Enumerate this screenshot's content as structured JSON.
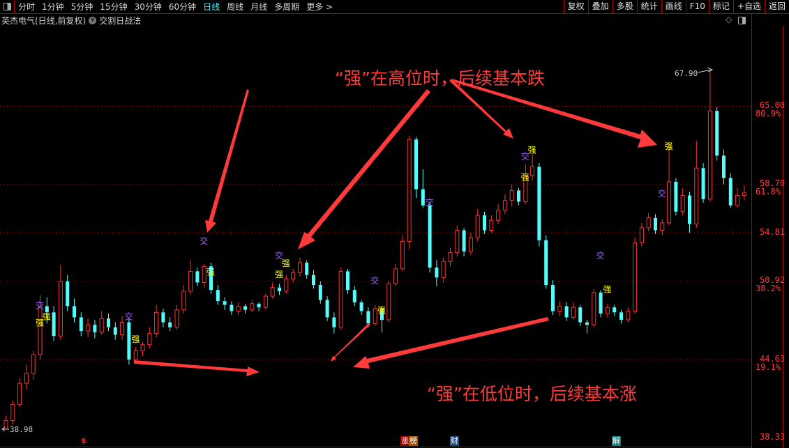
{
  "toolbar": {
    "periods": [
      "分时",
      "1分钟",
      "5分钟",
      "15分钟",
      "30分钟",
      "60分钟",
      "日线",
      "周线",
      "月线",
      "多周期",
      "更多 >"
    ],
    "active_period": "日线",
    "buttons": [
      "复权",
      "叠加",
      "多股",
      "统计",
      "画线",
      "F10",
      "标记",
      "+自选",
      "返回"
    ]
  },
  "title": {
    "stock": "英杰电气(日线,前复权)",
    "indicator": "交割日战法"
  },
  "annotations": {
    "high": "“强”在高位时，后续基本跌",
    "low": "“强”在低位时，后续基本涨"
  },
  "axis": {
    "price_labels": [
      {
        "price": "65.00",
        "pct": "80.9%"
      },
      {
        "price": "58.70",
        "pct": "61.8%"
      },
      {
        "price": "54.81",
        "pct": ""
      },
      {
        "price": "50.92",
        "pct": "38.2%"
      },
      {
        "price": "44.63",
        "pct": "19.1%"
      },
      {
        "price": "38.33",
        "pct": ""
      }
    ],
    "max_label": "67.90",
    "min_label": "38.98"
  },
  "bottom_markers": [
    {
      "label": "$",
      "color": "#ff2020"
    },
    {
      "label": "涨",
      "color": "#a00000"
    },
    {
      "label": "榜",
      "color": "#a05000"
    },
    {
      "label": "财",
      "color": "#1a4a8a"
    },
    {
      "label": "解",
      "color": "#108080"
    }
  ],
  "colors": {
    "up": "#ff3232",
    "down": "#54fcfc",
    "grid": "#b00000",
    "signal_jiao": "#a060ff",
    "signal_qiang": "#ffff00",
    "annotation": "#ff3a3a"
  },
  "chart_data": {
    "type": "candlestick",
    "ylim": [
      38.33,
      67.9
    ],
    "gridlines": [
      65.0,
      58.7,
      54.81,
      50.92,
      44.63
    ],
    "candles": [
      [
        39.0,
        40.1,
        38.98,
        39.7
      ],
      [
        39.7,
        41.3,
        39.4,
        41.0
      ],
      [
        41.0,
        43.1,
        40.8,
        42.7
      ],
      [
        42.7,
        44.2,
        42.2,
        43.5
      ],
      [
        43.5,
        45.3,
        43.0,
        45.0
      ],
      [
        45.0,
        49.8,
        44.6,
        48.9
      ],
      [
        48.9,
        49.6,
        47.5,
        48.4
      ],
      [
        48.4,
        48.9,
        46.1,
        46.5
      ],
      [
        46.5,
        52.2,
        46.2,
        50.9
      ],
      [
        50.9,
        51.4,
        48.5,
        48.9
      ],
      [
        48.9,
        49.5,
        47.6,
        48.0
      ],
      [
        48.0,
        48.4,
        46.5,
        46.9
      ],
      [
        46.9,
        47.9,
        46.4,
        47.4
      ],
      [
        47.4,
        47.8,
        46.3,
        46.8
      ],
      [
        46.8,
        48.5,
        46.6,
        47.9
      ],
      [
        47.9,
        48.3,
        46.9,
        47.2
      ],
      [
        47.2,
        47.6,
        46.2,
        46.6
      ],
      [
        46.6,
        48.1,
        46.2,
        47.6
      ],
      [
        47.6,
        47.9,
        44.2,
        44.6
      ],
      [
        44.6,
        45.6,
        44.4,
        45.3
      ],
      [
        45.3,
        46.0,
        44.9,
        45.8
      ],
      [
        45.8,
        47.2,
        45.5,
        46.7
      ],
      [
        46.7,
        49.0,
        46.4,
        48.4
      ],
      [
        48.4,
        48.7,
        47.2,
        47.6
      ],
      [
        47.6,
        48.0,
        46.9,
        47.2
      ],
      [
        47.2,
        49.0,
        47.0,
        48.6
      ],
      [
        48.6,
        50.6,
        48.3,
        50.1
      ],
      [
        50.1,
        52.6,
        49.8,
        51.7
      ],
      [
        51.7,
        52.0,
        50.5,
        50.8
      ],
      [
        50.8,
        52.3,
        50.4,
        52.1
      ],
      [
        52.1,
        52.4,
        49.9,
        50.2
      ],
      [
        50.2,
        50.6,
        49.0,
        49.3
      ],
      [
        49.3,
        49.6,
        48.6,
        49.0
      ],
      [
        49.0,
        49.3,
        48.2,
        48.5
      ],
      [
        48.5,
        49.2,
        48.2,
        48.9
      ],
      [
        48.9,
        49.1,
        48.3,
        48.6
      ],
      [
        48.6,
        49.4,
        48.4,
        49.1
      ],
      [
        49.1,
        49.2,
        48.5,
        48.8
      ],
      [
        48.8,
        49.9,
        48.6,
        49.7
      ],
      [
        49.7,
        50.8,
        49.5,
        50.4
      ],
      [
        50.4,
        50.7,
        49.8,
        50.1
      ],
      [
        50.1,
        51.4,
        49.9,
        51.1
      ],
      [
        51.1,
        51.9,
        50.8,
        51.6
      ],
      [
        51.6,
        52.8,
        51.3,
        52.4
      ],
      [
        52.4,
        52.6,
        51.1,
        51.4
      ],
      [
        51.4,
        51.8,
        50.3,
        50.6
      ],
      [
        50.6,
        50.9,
        49.1,
        49.4
      ],
      [
        49.4,
        49.7,
        47.7,
        48.0
      ],
      [
        48.0,
        48.4,
        46.7,
        47.2
      ],
      [
        47.2,
        52.0,
        47.0,
        51.7
      ],
      [
        51.7,
        51.9,
        49.9,
        50.2
      ],
      [
        50.2,
        50.5,
        48.9,
        49.2
      ],
      [
        49.2,
        49.4,
        48.2,
        48.5
      ],
      [
        48.5,
        48.8,
        47.2,
        47.5
      ],
      [
        47.5,
        49.0,
        47.3,
        48.7
      ],
      [
        48.7,
        48.9,
        46.8,
        47.8
      ],
      [
        47.8,
        50.9,
        47.6,
        50.7
      ],
      [
        50.7,
        52.3,
        50.5,
        51.9
      ],
      [
        51.9,
        54.6,
        51.7,
        54.1
      ],
      [
        54.1,
        62.6,
        53.5,
        62.3
      ],
      [
        62.3,
        62.5,
        57.6,
        58.3
      ],
      [
        58.3,
        59.9,
        56.8,
        57.0
      ],
      [
        57.0,
        57.3,
        51.6,
        52.0
      ],
      [
        52.0,
        52.6,
        50.5,
        51.2
      ],
      [
        51.2,
        52.8,
        50.8,
        52.5
      ],
      [
        52.5,
        53.6,
        52.1,
        53.2
      ],
      [
        53.2,
        55.4,
        52.9,
        55.0
      ],
      [
        55.0,
        55.2,
        52.9,
        53.3
      ],
      [
        53.3,
        54.8,
        53.0,
        54.4
      ],
      [
        54.4,
        56.7,
        54.1,
        56.2
      ],
      [
        56.2,
        56.5,
        54.7,
        55.0
      ],
      [
        55.0,
        56.2,
        54.8,
        55.8
      ],
      [
        55.8,
        57.1,
        55.5,
        56.6
      ],
      [
        56.6,
        57.9,
        56.3,
        57.4
      ],
      [
        57.4,
        58.7,
        56.9,
        58.2
      ],
      [
        58.2,
        58.4,
        57.0,
        57.3
      ],
      [
        57.3,
        60.3,
        57.1,
        59.4
      ],
      [
        59.4,
        61.1,
        59.0,
        60.1
      ],
      [
        60.1,
        60.4,
        53.7,
        54.2
      ],
      [
        54.2,
        54.6,
        50.3,
        50.6
      ],
      [
        50.6,
        51.0,
        48.2,
        48.5
      ],
      [
        48.5,
        49.3,
        48.1,
        48.9
      ],
      [
        48.9,
        49.2,
        47.7,
        48.0
      ],
      [
        48.0,
        49.2,
        47.8,
        48.8
      ],
      [
        48.8,
        49.0,
        47.3,
        47.6
      ],
      [
        47.6,
        47.8,
        46.7,
        47.4
      ],
      [
        47.4,
        50.3,
        47.2,
        50.0
      ],
      [
        50.0,
        50.2,
        48.0,
        48.3
      ],
      [
        48.3,
        49.1,
        48.0,
        48.8
      ],
      [
        48.8,
        49.0,
        48.1,
        48.4
      ],
      [
        48.4,
        48.6,
        47.5,
        47.8
      ],
      [
        47.8,
        48.8,
        47.6,
        48.5
      ],
      [
        48.5,
        54.4,
        48.3,
        54.0
      ],
      [
        54.0,
        55.6,
        53.7,
        55.2
      ],
      [
        55.2,
        56.4,
        54.9,
        56.0
      ],
      [
        56.0,
        56.3,
        54.7,
        55.0
      ],
      [
        55.0,
        55.9,
        54.6,
        55.6
      ],
      [
        55.6,
        61.9,
        55.4,
        58.9
      ],
      [
        58.9,
        59.2,
        56.2,
        56.5
      ],
      [
        56.5,
        58.4,
        56.2,
        57.8
      ],
      [
        57.8,
        58.1,
        54.8,
        55.5
      ],
      [
        55.5,
        62.2,
        55.2,
        60.0
      ],
      [
        60.0,
        60.4,
        57.2,
        57.5
      ],
      [
        57.5,
        67.9,
        57.3,
        64.6
      ],
      [
        64.6,
        64.9,
        60.6,
        61.0
      ],
      [
        61.0,
        61.5,
        58.7,
        59.2
      ],
      [
        59.2,
        59.6,
        56.8,
        57.0
      ],
      [
        57.0,
        58.4,
        56.8,
        57.8
      ],
      [
        57.8,
        58.6,
        57.4,
        58.0
      ]
    ],
    "signals": [
      {
        "i": 5,
        "label": "交",
        "price": 49.0
      },
      {
        "i": 5,
        "label": "强",
        "price": 47.6
      },
      {
        "i": 6,
        "label": "强",
        "price": 48.1
      },
      {
        "i": 18,
        "label": "交",
        "price": 48.1
      },
      {
        "i": 19,
        "label": "强",
        "price": 46.3
      },
      {
        "i": 29,
        "label": "交",
        "price": 54.2
      },
      {
        "i": 30,
        "label": "强",
        "price": 51.7
      },
      {
        "i": 40,
        "label": "交",
        "price": 53.0
      },
      {
        "i": 41,
        "label": "强",
        "price": 52.4
      },
      {
        "i": 40,
        "label": "强",
        "price": 51.5
      },
      {
        "i": 54,
        "label": "交",
        "price": 51.0
      },
      {
        "i": 55,
        "label": "强",
        "price": 48.6
      },
      {
        "i": 62,
        "label": "交",
        "price": 57.3
      },
      {
        "i": 76,
        "label": "交",
        "price": 61.0
      },
      {
        "i": 77,
        "label": "强",
        "price": 61.5
      },
      {
        "i": 76,
        "label": "强",
        "price": 59.3
      },
      {
        "i": 87,
        "label": "交",
        "price": 53.0
      },
      {
        "i": 88,
        "label": "强",
        "price": 50.3
      },
      {
        "i": 96,
        "label": "交",
        "price": 58.0
      },
      {
        "i": 97,
        "label": "强",
        "price": 61.8
      }
    ]
  }
}
